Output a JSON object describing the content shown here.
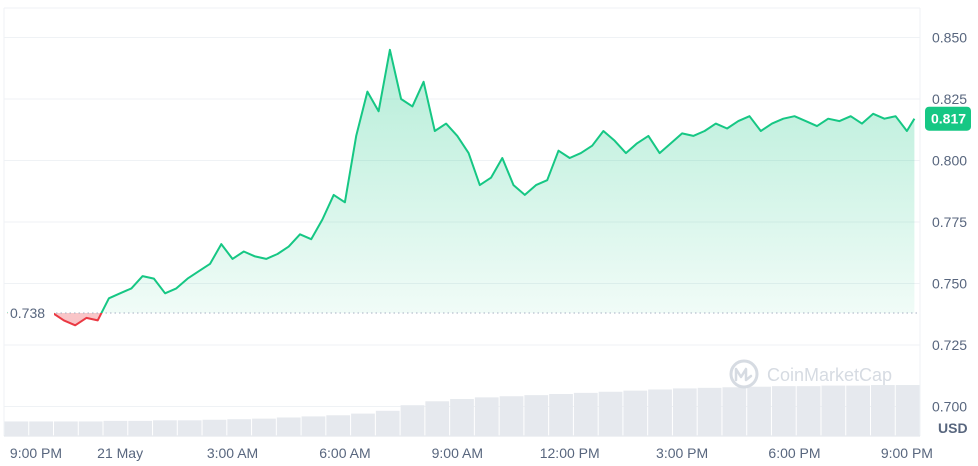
{
  "chart_data": {
    "type": "area",
    "currency_label": "USD",
    "open_price_label": "0.738",
    "current_price_label": "0.817",
    "open_price": 0.738,
    "current_price": 0.817,
    "y_ticks": [
      "0.850",
      "0.825",
      "0.800",
      "0.775",
      "0.750",
      "0.725",
      "0.700"
    ],
    "y_tick_values": [
      0.85,
      0.825,
      0.8,
      0.775,
      0.75,
      0.725,
      0.7
    ],
    "x_ticks": [
      "9:00 PM",
      "21 May",
      "3:00 AM",
      "6:00 AM",
      "9:00 AM",
      "12:00 PM",
      "3:00 PM",
      "6:00 PM",
      "9:00 PM"
    ],
    "x_tick_hours": [
      0,
      3,
      6,
      9,
      12,
      15,
      18,
      21,
      24
    ],
    "ylim": [
      0.688,
      0.862
    ],
    "xlim": [
      -0.1,
      24.35
    ],
    "grid": true,
    "watermark": "CoinMarketCap",
    "colors": {
      "up": "#16c784",
      "down": "#ea3943",
      "grid": "#eff2f5",
      "axis_text": "#58667e",
      "volume": "#e6e9ee",
      "dotted": "#a6b0c3"
    },
    "series": [
      {
        "x": [
          0,
          0.3,
          0.6,
          0.9,
          1.2,
          1.5,
          1.8,
          2.1,
          2.4,
          2.7,
          3.0,
          3.3,
          3.6,
          3.9,
          4.2,
          4.5,
          4.8,
          5.1,
          5.4,
          5.7,
          6.0,
          6.3,
          6.6,
          6.9,
          7.2,
          7.5,
          7.8,
          8.1,
          8.4,
          8.7,
          9.0,
          9.3,
          9.6,
          9.9,
          10.2,
          10.5,
          10.8,
          11.1,
          11.4,
          11.7,
          12.0,
          12.3,
          12.6,
          12.9,
          13.2,
          13.5,
          13.8,
          14.1,
          14.4,
          14.7,
          15.0,
          15.3,
          15.6,
          15.9,
          16.2,
          16.5,
          16.8,
          17.1,
          17.4,
          17.7,
          18.0,
          18.3,
          18.6,
          18.9,
          19.2,
          19.5,
          19.8,
          20.1,
          20.4,
          20.7,
          21.0,
          21.3,
          21.6,
          21.9,
          22.2,
          22.5,
          22.8,
          23.1,
          23.4,
          23.7,
          24.0,
          24.2
        ],
        "y": [
          0.738,
          0.739,
          0.739,
          0.741,
          0.738,
          0.735,
          0.733,
          0.736,
          0.735,
          0.744,
          0.746,
          0.748,
          0.753,
          0.752,
          0.746,
          0.748,
          0.752,
          0.755,
          0.758,
          0.766,
          0.76,
          0.763,
          0.761,
          0.76,
          0.762,
          0.765,
          0.77,
          0.768,
          0.776,
          0.786,
          0.783,
          0.81,
          0.828,
          0.82,
          0.845,
          0.825,
          0.822,
          0.832,
          0.812,
          0.815,
          0.81,
          0.803,
          0.79,
          0.793,
          0.801,
          0.79,
          0.786,
          0.79,
          0.792,
          0.804,
          0.801,
          0.803,
          0.806,
          0.812,
          0.808,
          0.803,
          0.807,
          0.81,
          0.803,
          0.807,
          0.811,
          0.81,
          0.812,
          0.815,
          0.813,
          0.816,
          0.818,
          0.812,
          0.815,
          0.817,
          0.818,
          0.816,
          0.814,
          0.817,
          0.816,
          0.818,
          0.815,
          0.819,
          0.817,
          0.818,
          0.812,
          0.817
        ]
      }
    ],
    "volume": [
      0.26,
      0.26,
      0.26,
      0.26,
      0.27,
      0.27,
      0.28,
      0.28,
      0.29,
      0.3,
      0.31,
      0.33,
      0.35,
      0.37,
      0.4,
      0.45,
      0.55,
      0.62,
      0.66,
      0.69,
      0.71,
      0.73,
      0.75,
      0.77,
      0.79,
      0.81,
      0.83,
      0.85,
      0.86,
      0.87,
      0.88,
      0.89,
      0.89,
      0.9,
      0.9,
      0.91,
      0.91
    ]
  }
}
